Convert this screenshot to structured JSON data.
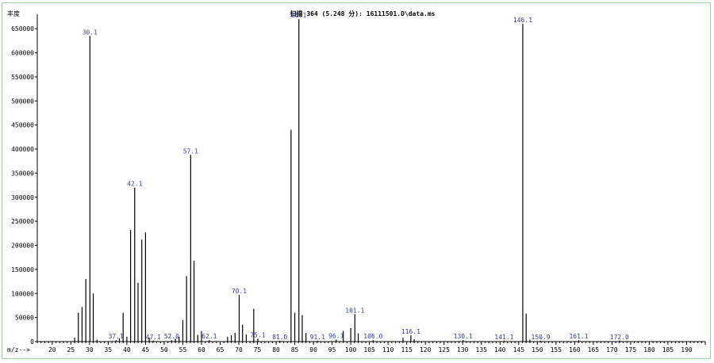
{
  "window": {
    "title": "扫描 364 (5.248 分): 16111501.D\\data.ms"
  },
  "chart_data": {
    "type": "bar",
    "title": "扫描 364 (5.248 分): 16111501.D\\data.ms",
    "ylabel": "丰度",
    "xlabel": "m/z-->",
    "xlim": [
      16,
      195
    ],
    "ylim": [
      0,
      680000
    ],
    "x_ticks": [
      20,
      25,
      30,
      35,
      40,
      45,
      50,
      55,
      60,
      65,
      70,
      75,
      80,
      85,
      90,
      95,
      100,
      105,
      110,
      115,
      120,
      125,
      130,
      135,
      140,
      145,
      150,
      155,
      160,
      165,
      170,
      175,
      180,
      185,
      190
    ],
    "y_ticks": [
      0,
      50000,
      100000,
      150000,
      200000,
      250000,
      300000,
      350000,
      400000,
      450000,
      500000,
      550000,
      600000,
      650000
    ],
    "grid": false,
    "colors": {
      "bars": "#000000",
      "labels": "#3a3aa0",
      "frame": "#9bd39b"
    },
    "peaks": [
      {
        "mz": 26,
        "abundance": 8000
      },
      {
        "mz": 27,
        "abundance": 60000
      },
      {
        "mz": 28,
        "abundance": 72000
      },
      {
        "mz": 29,
        "abundance": 130000
      },
      {
        "mz": 30.1,
        "abundance": 635000
      },
      {
        "mz": 31,
        "abundance": 100000
      },
      {
        "mz": 32,
        "abundance": 4000
      },
      {
        "mz": 37.1,
        "abundance": 3000
      },
      {
        "mz": 38,
        "abundance": 7000
      },
      {
        "mz": 39,
        "abundance": 60000
      },
      {
        "mz": 40,
        "abundance": 10000
      },
      {
        "mz": 41,
        "abundance": 232000
      },
      {
        "mz": 42.1,
        "abundance": 320000
      },
      {
        "mz": 43,
        "abundance": 122000
      },
      {
        "mz": 44,
        "abundance": 212000
      },
      {
        "mz": 45,
        "abundance": 227000
      },
      {
        "mz": 46,
        "abundance": 8000
      },
      {
        "mz": 47.1,
        "abundance": 2000
      },
      {
        "mz": 52.0,
        "abundance": 3000
      },
      {
        "mz": 53,
        "abundance": 6000
      },
      {
        "mz": 54,
        "abundance": 10000
      },
      {
        "mz": 55,
        "abundance": 45000
      },
      {
        "mz": 56,
        "abundance": 136000
      },
      {
        "mz": 57.1,
        "abundance": 388000
      },
      {
        "mz": 58,
        "abundance": 168000
      },
      {
        "mz": 59,
        "abundance": 14000
      },
      {
        "mz": 60,
        "abundance": 22000
      },
      {
        "mz": 62.1,
        "abundance": 3000
      },
      {
        "mz": 67,
        "abundance": 10000
      },
      {
        "mz": 68,
        "abundance": 13000
      },
      {
        "mz": 69,
        "abundance": 18000
      },
      {
        "mz": 70.1,
        "abundance": 97000
      },
      {
        "mz": 71,
        "abundance": 35000
      },
      {
        "mz": 72,
        "abundance": 15000
      },
      {
        "mz": 74,
        "abundance": 68000
      },
      {
        "mz": 75.1,
        "abundance": 6000
      },
      {
        "mz": 81.0,
        "abundance": 2000
      },
      {
        "mz": 84,
        "abundance": 440000
      },
      {
        "mz": 85,
        "abundance": 60000
      },
      {
        "mz": 86.1,
        "abundance": 670000
      },
      {
        "mz": 87,
        "abundance": 55000
      },
      {
        "mz": 88,
        "abundance": 18000
      },
      {
        "mz": 91.1,
        "abundance": 2000
      },
      {
        "mz": 96.1,
        "abundance": 4000
      },
      {
        "mz": 98,
        "abundance": 22000
      },
      {
        "mz": 100,
        "abundance": 28000
      },
      {
        "mz": 101.1,
        "abundance": 57000
      },
      {
        "mz": 102,
        "abundance": 17000
      },
      {
        "mz": 106.0,
        "abundance": 3000
      },
      {
        "mz": 114,
        "abundance": 8000
      },
      {
        "mz": 116.1,
        "abundance": 13000
      },
      {
        "mz": 117,
        "abundance": 5000
      },
      {
        "mz": 130.1,
        "abundance": 3000
      },
      {
        "mz": 141.1,
        "abundance": 2000
      },
      {
        "mz": 146.1,
        "abundance": 660000
      },
      {
        "mz": 147,
        "abundance": 58000
      },
      {
        "mz": 148,
        "abundance": 4000
      },
      {
        "mz": 150.9,
        "abundance": 2000
      },
      {
        "mz": 161.1,
        "abundance": 3000
      },
      {
        "mz": 172.0,
        "abundance": 2000
      }
    ],
    "annotations": [
      "30.1",
      "37.1",
      "42.1",
      "47.1",
      "52.0",
      "57.1",
      "62.1",
      "70.1",
      "75.1",
      "81.0",
      "86.1",
      "91.1",
      "96.1",
      "101.1",
      "106.0",
      "116.1",
      "130.1",
      "141.1",
      "146.1",
      "150.9",
      "161.1",
      "172.0"
    ]
  }
}
